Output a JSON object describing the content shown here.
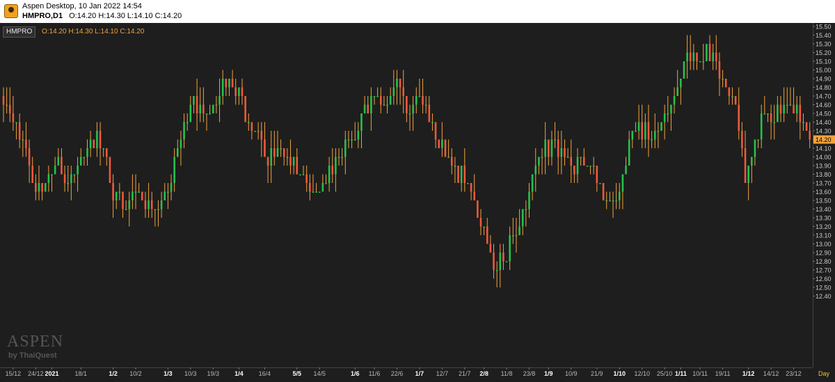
{
  "window": {
    "title": "Aspen Desktop, 10 Jan 2022 14:54",
    "symbol": "HMPRO,D1",
    "ohlc_text": "O:14.20 H:14.30 L:14.10 C:14.20"
  },
  "legend": {
    "name": "HMPRO",
    "values": "O:14.20 H:14.30 L:14.10 C:14.20"
  },
  "watermark": {
    "brand": "ASPEN",
    "by": "by ThaiQuest"
  },
  "colors": {
    "up": "#27c24c",
    "down": "#f05a3c",
    "background": "#1e1e1e",
    "grid": "#2c2c2c",
    "wick": "#f2a33a",
    "last_price": "#f2a33a"
  },
  "chart_data": {
    "type": "candlestick",
    "title": "",
    "xlabel": "",
    "ylabel": "",
    "period": "Day",
    "ylim": [
      12.3,
      15.5
    ],
    "grid": false,
    "last_price": "14.20",
    "y_ticks": [
      "15.50",
      "15.40",
      "15.30",
      "15.20",
      "15.10",
      "15.00",
      "14.90",
      "14.80",
      "14.70",
      "14.60",
      "14.50",
      "14.40",
      "14.30",
      "14.20",
      "14.10",
      "14.00",
      "13.90",
      "13.80",
      "13.70",
      "13.60",
      "13.50",
      "13.40",
      "13.30",
      "13.20",
      "13.10",
      "13.00",
      "12.90",
      "12.80",
      "12.70",
      "12.60",
      "12.50",
      "12.40"
    ],
    "x_ticks": [
      {
        "label": "15/12",
        "index": 3,
        "bold": false
      },
      {
        "label": "24/12",
        "index": 10,
        "bold": false
      },
      {
        "label": "2021",
        "index": 15,
        "bold": true
      },
      {
        "label": "18/1",
        "index": 24,
        "bold": false
      },
      {
        "label": "1/2",
        "index": 34,
        "bold": true
      },
      {
        "label": "10/2",
        "index": 41,
        "bold": false
      },
      {
        "label": "1/3",
        "index": 51,
        "bold": true
      },
      {
        "label": "10/3",
        "index": 58,
        "bold": false
      },
      {
        "label": "19/3",
        "index": 65,
        "bold": false
      },
      {
        "label": "1/4",
        "index": 73,
        "bold": true
      },
      {
        "label": "16/4",
        "index": 81,
        "bold": false
      },
      {
        "label": "5/5",
        "index": 91,
        "bold": true
      },
      {
        "label": "14/5",
        "index": 98,
        "bold": false
      },
      {
        "label": "1/6",
        "index": 109,
        "bold": true
      },
      {
        "label": "11/6",
        "index": 115,
        "bold": false
      },
      {
        "label": "22/6",
        "index": 122,
        "bold": false
      },
      {
        "label": "1/7",
        "index": 129,
        "bold": true
      },
      {
        "label": "12/7",
        "index": 136,
        "bold": false
      },
      {
        "label": "21/7",
        "index": 143,
        "bold": false
      },
      {
        "label": "2/8",
        "index": 149,
        "bold": true
      },
      {
        "label": "11/8",
        "index": 156,
        "bold": false
      },
      {
        "label": "23/8",
        "index": 163,
        "bold": false
      },
      {
        "label": "1/9",
        "index": 169,
        "bold": true
      },
      {
        "label": "10/9",
        "index": 176,
        "bold": false
      },
      {
        "label": "21/9",
        "index": 184,
        "bold": false
      },
      {
        "label": "1/10",
        "index": 191,
        "bold": true
      },
      {
        "label": "12/10",
        "index": 198,
        "bold": false
      },
      {
        "label": "25/10",
        "index": 205,
        "bold": false
      },
      {
        "label": "1/11",
        "index": 210,
        "bold": true
      },
      {
        "label": "10/11",
        "index": 216,
        "bold": false
      },
      {
        "label": "19/11",
        "index": 223,
        "bold": false
      },
      {
        "label": "1/12",
        "index": 231,
        "bold": true
      },
      {
        "label": "14/12",
        "index": 238,
        "bold": false
      },
      {
        "label": "23/12",
        "index": 245,
        "bold": false
      }
    ],
    "anchors": [
      [
        0,
        14.6
      ],
      [
        4,
        14.4
      ],
      [
        7,
        14.1
      ],
      [
        9,
        13.7
      ],
      [
        12,
        13.6
      ],
      [
        16,
        13.9
      ],
      [
        20,
        13.7
      ],
      [
        24,
        14.0
      ],
      [
        29,
        14.3
      ],
      [
        33,
        13.7
      ],
      [
        37,
        13.4
      ],
      [
        41,
        13.6
      ],
      [
        46,
        13.4
      ],
      [
        51,
        13.6
      ],
      [
        54,
        14.1
      ],
      [
        58,
        14.6
      ],
      [
        62,
        14.5
      ],
      [
        66,
        14.6
      ],
      [
        70,
        14.9
      ],
      [
        73,
        14.8
      ],
      [
        76,
        14.4
      ],
      [
        79,
        14.3
      ],
      [
        82,
        13.9
      ],
      [
        86,
        14.1
      ],
      [
        89,
        13.9
      ],
      [
        92,
        13.8
      ],
      [
        96,
        13.6
      ],
      [
        99,
        13.7
      ],
      [
        102,
        13.8
      ],
      [
        105,
        14.0
      ],
      [
        109,
        14.2
      ],
      [
        112,
        14.6
      ],
      [
        116,
        14.7
      ],
      [
        119,
        14.6
      ],
      [
        122,
        14.9
      ],
      [
        125,
        14.5
      ],
      [
        128,
        14.7
      ],
      [
        131,
        14.6
      ],
      [
        134,
        14.2
      ],
      [
        137,
        14.0
      ],
      [
        140,
        13.9
      ],
      [
        143,
        13.7
      ],
      [
        146,
        13.5
      ],
      [
        149,
        13.2
      ],
      [
        152,
        12.7
      ],
      [
        155,
        12.8
      ],
      [
        158,
        13.1
      ],
      [
        161,
        13.4
      ],
      [
        164,
        13.8
      ],
      [
        167,
        14.0
      ],
      [
        170,
        14.2
      ],
      [
        173,
        14.1
      ],
      [
        176,
        13.9
      ],
      [
        179,
        14.0
      ],
      [
        182,
        13.9
      ],
      [
        185,
        13.7
      ],
      [
        188,
        13.5
      ],
      [
        191,
        13.6
      ],
      [
        194,
        14.2
      ],
      [
        197,
        14.4
      ],
      [
        200,
        14.2
      ],
      [
        203,
        14.3
      ],
      [
        206,
        14.5
      ],
      [
        209,
        14.8
      ],
      [
        212,
        15.2
      ],
      [
        215,
        15.1
      ],
      [
        218,
        15.3
      ],
      [
        221,
        15.1
      ],
      [
        224,
        14.8
      ],
      [
        227,
        14.6
      ],
      [
        230,
        13.7
      ],
      [
        233,
        14.2
      ],
      [
        236,
        14.5
      ],
      [
        239,
        14.4
      ],
      [
        242,
        14.6
      ],
      [
        245,
        14.5
      ],
      [
        248,
        14.4
      ],
      [
        250,
        14.2
      ]
    ]
  },
  "axis": {
    "period_label": "Day"
  }
}
